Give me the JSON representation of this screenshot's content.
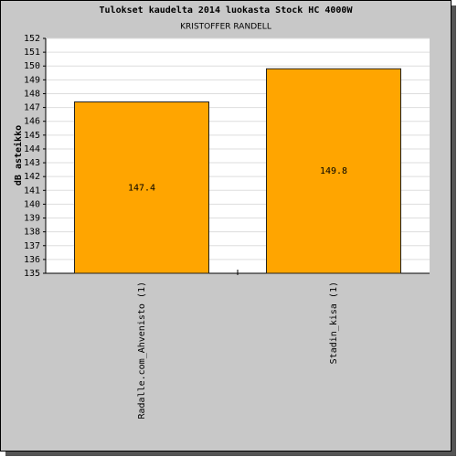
{
  "chart_data": {
    "type": "bar",
    "title": "Tulokset kaudelta 2014 luokasta Stock HC 4000W",
    "subtitle": "KRISTOFFER RANDELL",
    "y_label": "dB asteikko",
    "categories": [
      "Radalle.com_Ahvenisto (1)",
      "Stadin_kisa (1)"
    ],
    "values": [
      147.4,
      149.8
    ],
    "color": "#ffa500",
    "ylim": [
      135,
      152
    ],
    "yticks": [
      135,
      136,
      137,
      138,
      139,
      140,
      141,
      142,
      143,
      144,
      145,
      146,
      147,
      148,
      149,
      150,
      151,
      152
    ],
    "grid": true
  }
}
